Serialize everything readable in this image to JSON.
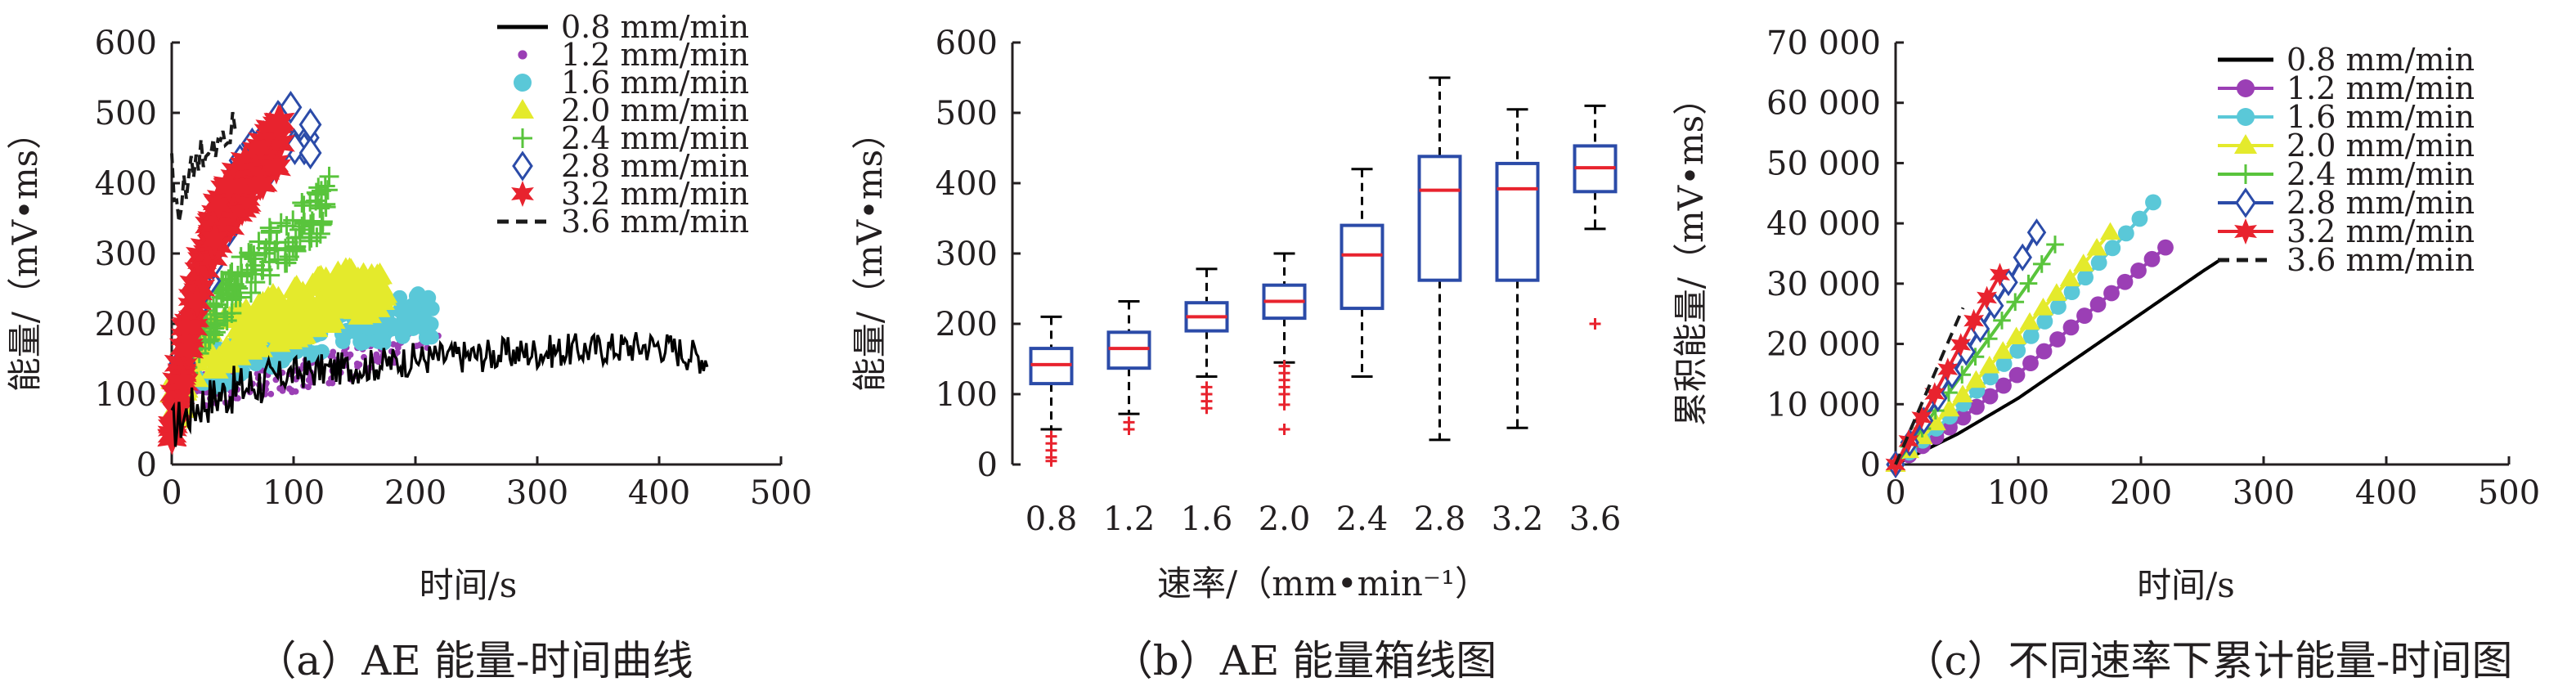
{
  "figure": {
    "captions": [
      "（a）AE 能量-时间曲线",
      "（b）AE 能量箱线图",
      "（c）不同速率下累计能量-时间图"
    ]
  },
  "colors": {
    "0.8 mm/min": "#000000",
    "1.2 mm/min": "#9b3fb5",
    "1.6 mm/min": "#5ac8d8",
    "2.0 mm/min": "#e4ea2c",
    "2.4 mm/min": "#59c43c",
    "2.8 mm/min": "#2b4ba8",
    "3.2 mm/min": "#e8232e",
    "3.6 mm/min": "#1a1a1a",
    "box_edge": "#2b4ba8",
    "median": "#e8232e",
    "outlier": "#e8232e"
  },
  "chart_data": [
    {
      "type": "scatter",
      "caption": "（a）AE 能量-时间曲线",
      "xlabel": "时间/s",
      "ylabel": "能量/（mV•ms）",
      "xlim": [
        0,
        500
      ],
      "ylim": [
        0,
        600
      ],
      "xticks": [
        0,
        100,
        200,
        300,
        400,
        500
      ],
      "yticks": [
        0,
        100,
        200,
        300,
        400,
        500,
        600
      ],
      "legend_position": "top-right",
      "series": [
        {
          "name": "0.8 mm/min",
          "marker": "line",
          "x": [
            0,
            20,
            40,
            60,
            80,
            100,
            130,
            160,
            200,
            250,
            300,
            350,
            400,
            440
          ],
          "y": [
            50,
            85,
            100,
            110,
            120,
            130,
            135,
            140,
            150,
            155,
            160,
            165,
            170,
            150
          ]
        },
        {
          "name": "1.2 mm/min",
          "marker": "dot",
          "x": [
            0,
            20,
            40,
            60,
            80,
            100,
            130,
            160,
            190,
            220
          ],
          "y": [
            60,
            100,
            110,
            120,
            125,
            130,
            140,
            155,
            175,
            190
          ]
        },
        {
          "name": "1.6 mm/min",
          "marker": "circle",
          "x": [
            0,
            20,
            40,
            60,
            80,
            110,
            140,
            170,
            200,
            215
          ],
          "y": [
            70,
            130,
            140,
            150,
            165,
            180,
            195,
            200,
            215,
            205
          ]
        },
        {
          "name": "2.0 mm/min",
          "marker": "triangle",
          "x": [
            0,
            20,
            40,
            60,
            80,
            100,
            120,
            140,
            160,
            175
          ],
          "y": [
            80,
            160,
            175,
            190,
            205,
            215,
            230,
            245,
            250,
            240
          ]
        },
        {
          "name": "2.4 mm/min",
          "marker": "plus",
          "x": [
            0,
            20,
            40,
            60,
            80,
            100,
            115,
            130
          ],
          "y": [
            90,
            190,
            230,
            270,
            300,
            330,
            350,
            380
          ]
        },
        {
          "name": "2.8 mm/min",
          "marker": "diamond",
          "x": [
            0,
            15,
            30,
            45,
            60,
            75,
            90,
            105,
            115
          ],
          "y": [
            40,
            220,
            290,
            360,
            410,
            440,
            470,
            480,
            460
          ]
        },
        {
          "name": "3.2 mm/min",
          "marker": "star",
          "x": [
            0,
            10,
            20,
            30,
            40,
            50,
            60,
            70,
            80,
            90
          ],
          "y": [
            50,
            150,
            240,
            300,
            350,
            380,
            400,
            420,
            440,
            470
          ]
        },
        {
          "name": "3.6 mm/min",
          "marker": "dashed",
          "x": [
            0,
            3,
            8,
            15,
            25,
            35,
            45,
            55
          ],
          "y": [
            440,
            360,
            380,
            410,
            440,
            460,
            480,
            500
          ]
        }
      ]
    },
    {
      "type": "box",
      "caption": "（b）AE 能量箱线图",
      "xlabel": "速率/（mm•min⁻¹）",
      "ylabel": "能量/（mV•ms）",
      "ylim": [
        0,
        600
      ],
      "yticks": [
        0,
        100,
        200,
        300,
        400,
        500,
        600
      ],
      "categories": [
        "0.8",
        "1.2",
        "1.6",
        "2.0",
        "2.4",
        "2.8",
        "3.2",
        "3.6"
      ],
      "boxes": [
        {
          "whisker_low": 50,
          "q1": 115,
          "median": 142,
          "q3": 165,
          "whisker_high": 210,
          "outliers": [
            40,
            30,
            20,
            10,
            5
          ]
        },
        {
          "whisker_low": 72,
          "q1": 137,
          "median": 165,
          "q3": 188,
          "whisker_high": 232,
          "outliers": [
            60,
            50
          ]
        },
        {
          "whisker_low": 125,
          "q1": 190,
          "median": 210,
          "q3": 230,
          "whisker_high": 278,
          "outliers": [
            110,
            100,
            90,
            80
          ]
        },
        {
          "whisker_low": 145,
          "q1": 208,
          "median": 232,
          "q3": 255,
          "whisker_high": 300,
          "outliers": [
            140,
            130,
            120,
            110,
            100,
            85,
            50
          ]
        },
        {
          "whisker_low": 125,
          "q1": 222,
          "median": 298,
          "q3": 340,
          "whisker_high": 420,
          "outliers": []
        },
        {
          "whisker_low": 35,
          "q1": 262,
          "median": 390,
          "q3": 438,
          "whisker_high": 550,
          "outliers": []
        },
        {
          "whisker_low": 52,
          "q1": 262,
          "median": 392,
          "q3": 428,
          "whisker_high": 505,
          "outliers": []
        },
        {
          "whisker_low": 335,
          "q1": 388,
          "median": 422,
          "q3": 453,
          "whisker_high": 510,
          "outliers": [
            200
          ]
        }
      ]
    },
    {
      "type": "line",
      "caption": "（c）不同速率下累计能量-时间图",
      "xlabel": "时间/s",
      "ylabel": "累积能量/（mV•ms）",
      "xlim": [
        0,
        500
      ],
      "ylim": [
        0,
        70000
      ],
      "xticks": [
        0,
        100,
        200,
        300,
        400,
        500
      ],
      "yticks": [
        0,
        10000,
        20000,
        30000,
        40000,
        50000,
        60000,
        70000
      ],
      "ytick_labels": [
        "0",
        "10 000",
        "20 000",
        "30 000",
        "40 000",
        "50 000",
        "60 000",
        "70 000"
      ],
      "legend_position": "top-right",
      "series": [
        {
          "name": "0.8 mm/min",
          "marker": "line",
          "x": [
            0,
            50,
            100,
            150,
            200,
            250,
            265
          ],
          "y": [
            0,
            5000,
            11000,
            18000,
            25000,
            32000,
            34000
          ]
        },
        {
          "name": "1.2 mm/min",
          "marker": "circle",
          "x": [
            0,
            50,
            100,
            150,
            200,
            220
          ],
          "y": [
            0,
            7000,
            15000,
            24000,
            32500,
            36000
          ]
        },
        {
          "name": "1.6 mm/min",
          "marker": "circle",
          "x": [
            0,
            50,
            100,
            150,
            200,
            210
          ],
          "y": [
            0,
            9000,
            19000,
            30000,
            41000,
            43500
          ]
        },
        {
          "name": "2.0 mm/min",
          "marker": "triangle",
          "x": [
            0,
            50,
            100,
            150,
            175
          ],
          "y": [
            0,
            10500,
            21500,
            32500,
            38500
          ]
        },
        {
          "name": "2.4 mm/min",
          "marker": "plus",
          "x": [
            0,
            40,
            80,
            110,
            130
          ],
          "y": [
            0,
            11000,
            22000,
            30500,
            36500
          ]
        },
        {
          "name": "2.8 mm/min",
          "marker": "diamond",
          "x": [
            0,
            30,
            60,
            90,
            115
          ],
          "y": [
            0,
            9500,
            19500,
            29500,
            38500
          ]
        },
        {
          "name": "3.2 mm/min",
          "marker": "star",
          "x": [
            0,
            30,
            60,
            85
          ],
          "y": [
            0,
            11000,
            22500,
            31500
          ]
        },
        {
          "name": "3.6 mm/min",
          "marker": "dashed",
          "x": [
            0,
            20,
            40,
            55
          ],
          "y": [
            0,
            9500,
            19000,
            26000
          ]
        }
      ]
    }
  ]
}
